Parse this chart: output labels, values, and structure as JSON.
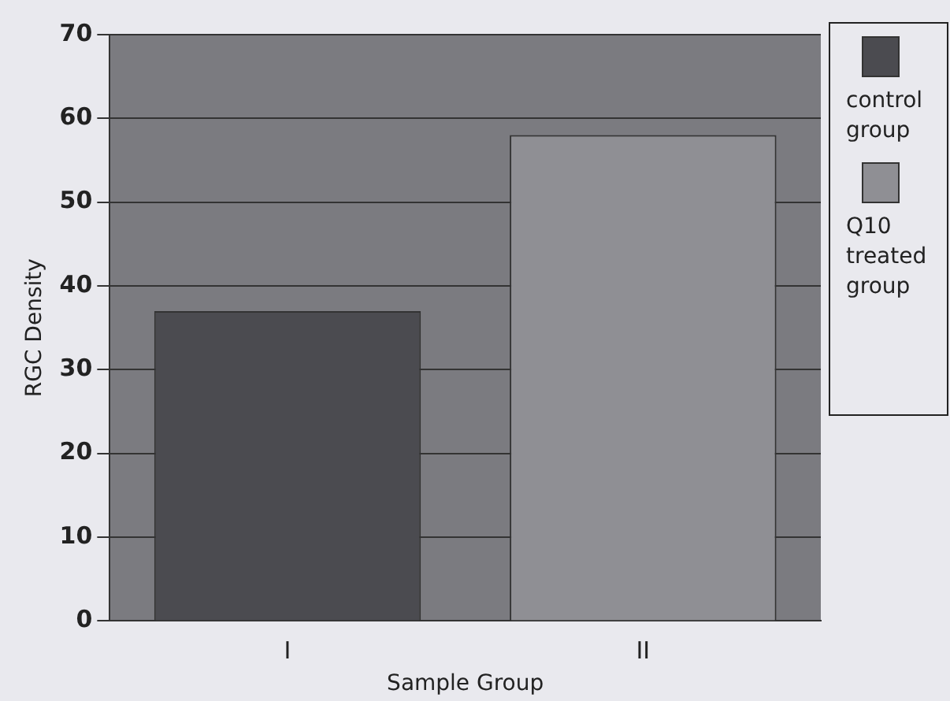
{
  "chart_data": {
    "type": "bar",
    "xlabel": "Sample Group",
    "ylabel": "RGC Density",
    "categories": [
      "I",
      "II"
    ],
    "series": [
      {
        "name": "control group",
        "color": "#4b4b50",
        "values": [
          37,
          null
        ]
      },
      {
        "name": "Q10 treated group",
        "color": "#8f8f94",
        "values": [
          null,
          58
        ]
      }
    ],
    "ylim": [
      0,
      70
    ],
    "yticks": [
      0,
      10,
      20,
      30,
      40,
      50,
      60,
      70
    ],
    "grid": "y",
    "legend": "right"
  }
}
